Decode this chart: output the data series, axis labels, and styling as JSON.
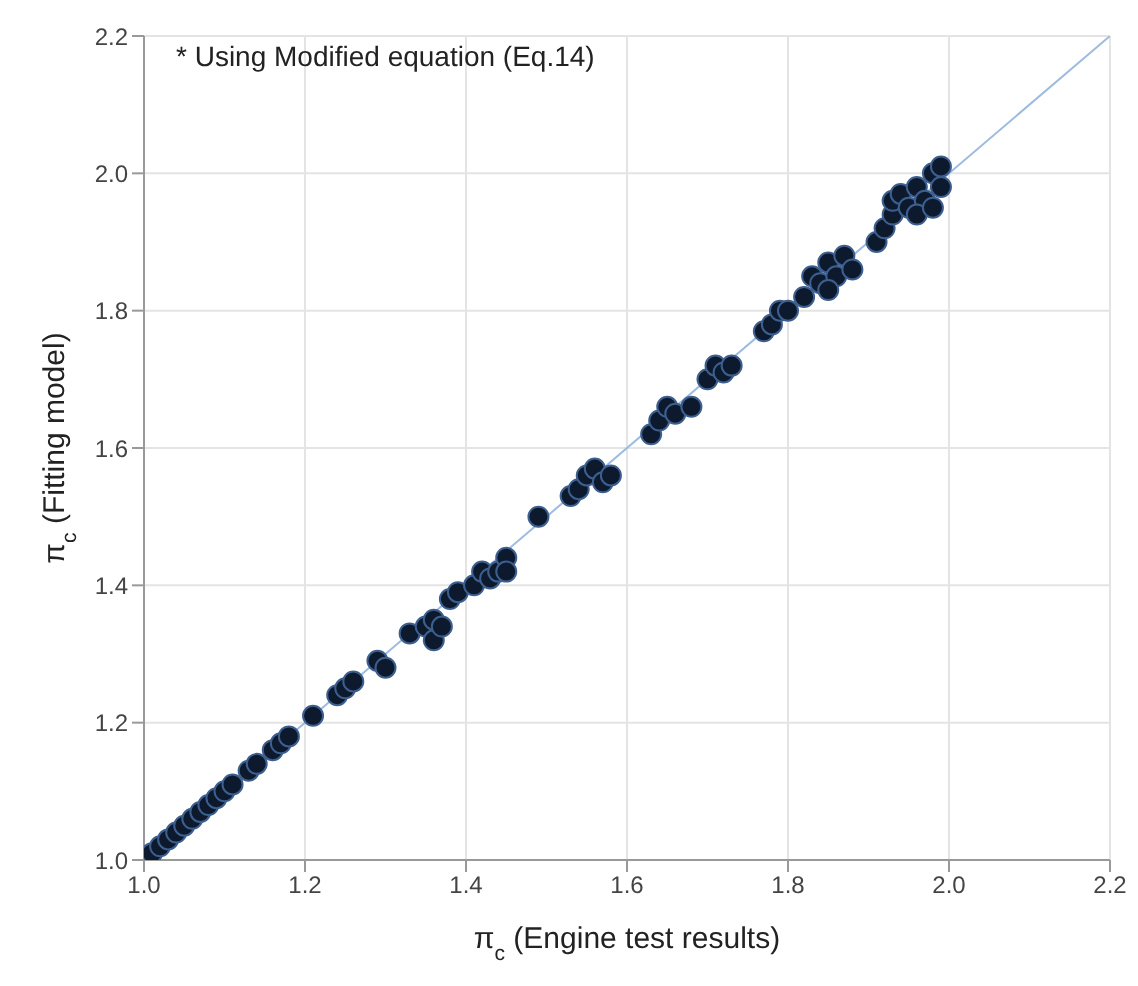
{
  "chart_data": {
    "type": "scatter",
    "xlabel": "π$_{c}$ (Engine test results)",
    "ylabel": "π$_{c}$ (Fitting model)",
    "annotations": [
      "* Using Modified equation (Eq.14)"
    ],
    "xlim": [
      1.0,
      2.2
    ],
    "ylim": [
      1.0,
      2.2
    ],
    "xticks": [
      {
        "value": 1,
        "label": "1.0"
      },
      {
        "value": 1.2,
        "label": "1.2"
      },
      {
        "value": 1.4,
        "label": "1.4"
      },
      {
        "value": 1.6,
        "label": "1.6"
      },
      {
        "value": 1.8,
        "label": "1.8"
      },
      {
        "value": 2,
        "label": "2.0"
      },
      {
        "value": 2.2,
        "label": "2.2"
      }
    ],
    "yticks": [
      {
        "value": 1,
        "label": "1.0"
      },
      {
        "value": 1.2,
        "label": "1.2"
      },
      {
        "value": 1.4,
        "label": "1.4"
      },
      {
        "value": 1.6,
        "label": "1.6"
      },
      {
        "value": 1.8,
        "label": "1.8"
      },
      {
        "value": 2,
        "label": "2.0"
      },
      {
        "value": 2.2,
        "label": "2.2"
      }
    ],
    "grid": true,
    "marker": "circle",
    "series": [
      {
        "color": "#0d1a2e",
        "x": [
          1.01,
          1.02,
          1.03,
          1.04,
          1.05,
          1.06,
          1.07,
          1.08,
          1.09,
          1.1,
          1.11,
          1.13,
          1.14,
          1.16,
          1.17,
          1.18,
          1.21,
          1.24,
          1.25,
          1.26,
          1.29,
          1.3,
          1.33,
          1.35,
          1.36,
          1.36,
          1.37,
          1.38,
          1.39,
          1.41,
          1.42,
          1.43,
          1.44,
          1.45,
          1.45,
          1.49,
          1.53,
          1.54,
          1.55,
          1.56,
          1.57,
          1.58,
          1.63,
          1.64,
          1.65,
          1.66,
          1.68,
          1.7,
          1.71,
          1.72,
          1.73,
          1.77,
          1.78,
          1.79,
          1.8,
          1.82,
          1.83,
          1.84,
          1.85,
          1.86,
          1.87,
          1.85,
          1.88,
          1.91,
          1.92,
          1.93,
          1.93,
          1.94,
          1.95,
          1.96,
          1.97,
          1.96,
          1.98,
          1.99,
          1.99,
          1.98
        ],
        "values": [
          1.01,
          1.02,
          1.03,
          1.04,
          1.05,
          1.06,
          1.07,
          1.08,
          1.09,
          1.1,
          1.11,
          1.13,
          1.14,
          1.16,
          1.17,
          1.18,
          1.21,
          1.24,
          1.25,
          1.26,
          1.29,
          1.28,
          1.33,
          1.34,
          1.35,
          1.32,
          1.34,
          1.38,
          1.39,
          1.4,
          1.42,
          1.41,
          1.42,
          1.44,
          1.42,
          1.5,
          1.53,
          1.54,
          1.56,
          1.57,
          1.55,
          1.56,
          1.62,
          1.64,
          1.66,
          1.65,
          1.66,
          1.7,
          1.72,
          1.71,
          1.72,
          1.77,
          1.78,
          1.8,
          1.8,
          1.82,
          1.85,
          1.84,
          1.87,
          1.85,
          1.88,
          1.83,
          1.86,
          1.9,
          1.92,
          1.94,
          1.96,
          1.97,
          1.95,
          1.98,
          1.96,
          1.94,
          2.0,
          2.01,
          1.98,
          1.95
        ]
      },
      {
        "type": "line",
        "color": "#9dbbe0",
        "marker": "none",
        "x": [
          1.0,
          2.2
        ],
        "values": [
          1.0,
          2.2
        ]
      }
    ]
  }
}
